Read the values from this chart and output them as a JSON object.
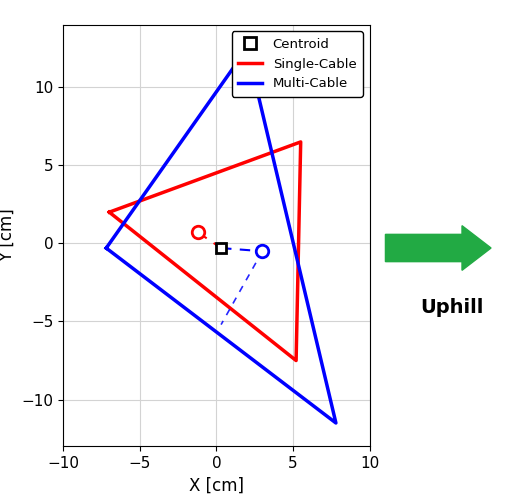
{
  "red_triangle": [
    [
      -7.0,
      2.0
    ],
    [
      5.5,
      6.5
    ],
    [
      5.2,
      -7.5
    ],
    [
      -7.0,
      2.0
    ]
  ],
  "blue_triangle": [
    [
      -7.2,
      -0.3
    ],
    [
      2.0,
      12.5
    ],
    [
      7.8,
      -11.5
    ],
    [
      -7.2,
      -0.3
    ]
  ],
  "red_com": [
    -1.2,
    0.7
  ],
  "blue_com": [
    3.0,
    -0.5
  ],
  "centroid": [
    0.3,
    -0.3
  ],
  "xlim": [
    -10,
    10
  ],
  "ylim": [
    -13,
    14
  ],
  "xlabel": "X [cm]",
  "ylabel": "Y [cm]",
  "red_color": "#FF0000",
  "blue_color": "#0000FF",
  "arrow_color": "#22AA44",
  "uphill_text": "Uphill",
  "xticks": [
    -10,
    -5,
    0,
    5,
    10
  ],
  "yticks": [
    -10,
    -5,
    0,
    5,
    10
  ],
  "linewidth": 2.5,
  "figsize": [
    5.28,
    4.96
  ],
  "dpi": 100
}
